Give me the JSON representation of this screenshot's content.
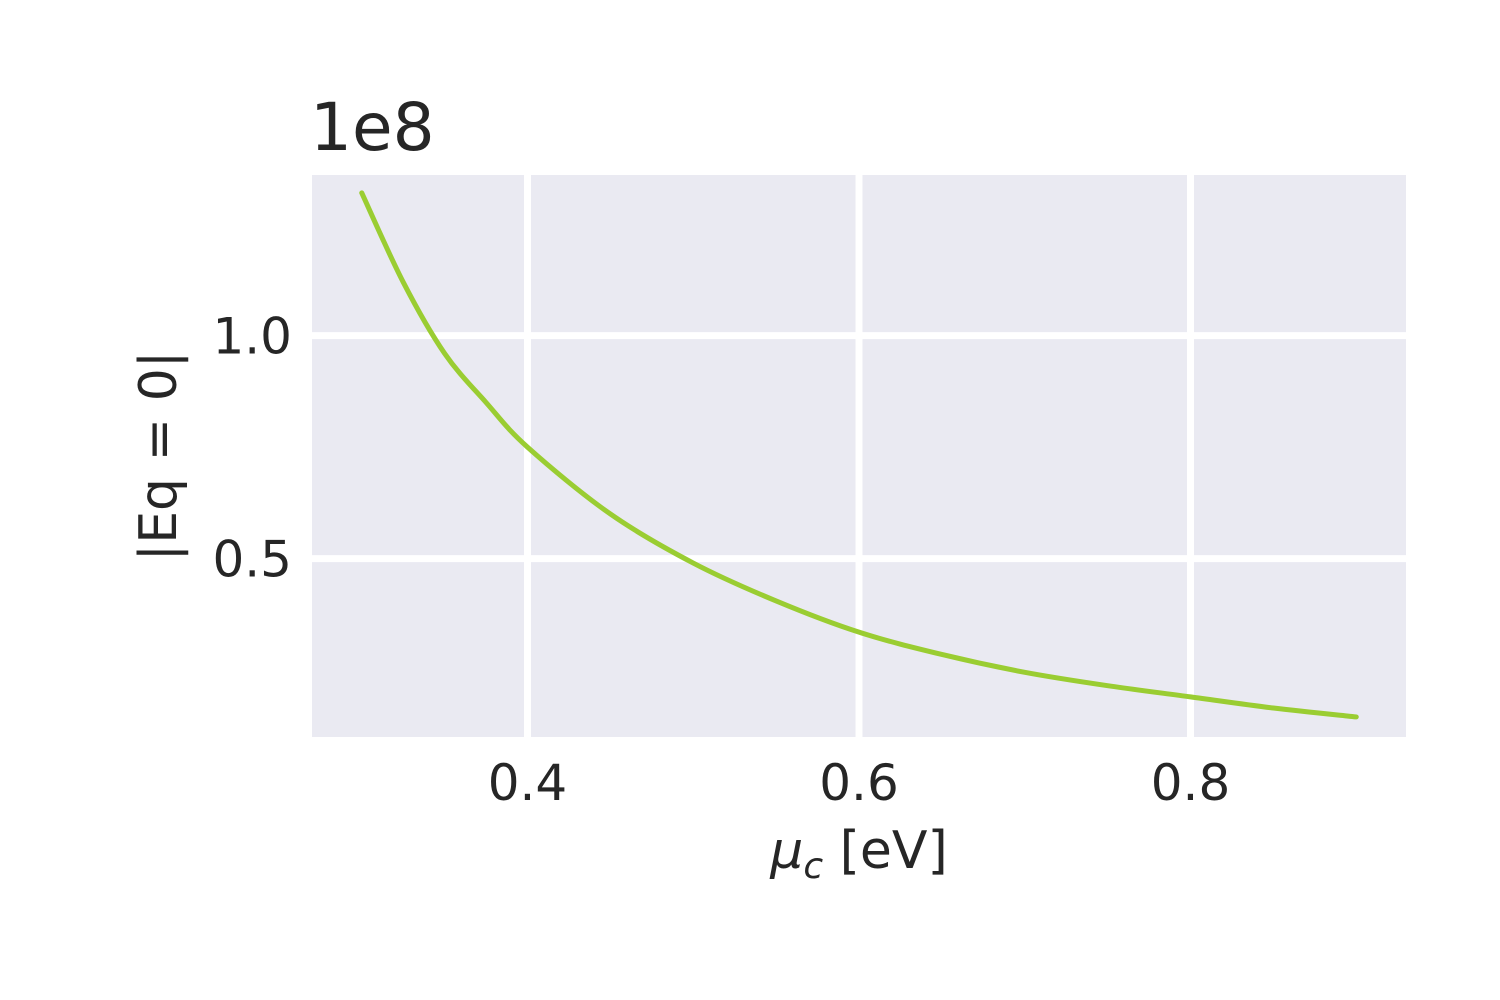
{
  "chart_data": {
    "type": "line",
    "title": "",
    "offset_text": "1e8",
    "xlabel_symbol": "μ",
    "xlabel_subscript": "c",
    "xlabel_unit": " [eV]",
    "ylabel": "|Eq = 0|",
    "xlim": [
      0.27,
      0.93
    ],
    "ylim": [
      0.1,
      1.36
    ],
    "x_ticks": [
      0.4,
      0.6,
      0.8
    ],
    "x_tick_labels": [
      "0.4",
      "0.6",
      "0.8"
    ],
    "y_ticks": [
      0.5,
      1.0
    ],
    "y_tick_labels": [
      "0.5",
      "1.0"
    ],
    "grid": true,
    "background_color": "#eaeaf2",
    "grid_color": "#ffffff",
    "series": [
      {
        "color": "#9acd32",
        "x": [
          0.3,
          0.325,
          0.35,
          0.375,
          0.4,
          0.45,
          0.5,
          0.55,
          0.6,
          0.65,
          0.7,
          0.75,
          0.8,
          0.85,
          0.9
        ],
        "y": [
          1.32,
          1.12,
          0.96,
          0.85,
          0.75,
          0.6,
          0.49,
          0.405,
          0.335,
          0.285,
          0.245,
          0.215,
          0.19,
          0.165,
          0.145
        ]
      }
    ]
  }
}
